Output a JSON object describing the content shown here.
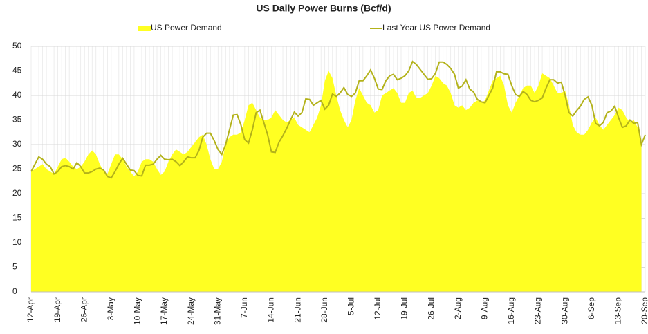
{
  "chart_data": {
    "type": "area-line",
    "title": "US Daily Power Burns (Bcf/d)",
    "legend": "top",
    "grid": true,
    "categories": [
      "12-Apr",
      null,
      null,
      null,
      null,
      null,
      null,
      "19-Apr",
      null,
      null,
      null,
      null,
      null,
      null,
      "26-Apr",
      null,
      null,
      null,
      null,
      null,
      null,
      "3-May",
      null,
      null,
      null,
      null,
      null,
      null,
      "10-May",
      null,
      null,
      null,
      null,
      null,
      null,
      "17-May",
      null,
      null,
      null,
      null,
      null,
      null,
      "24-May",
      null,
      null,
      null,
      null,
      null,
      null,
      "31-May",
      null,
      null,
      null,
      null,
      null,
      null,
      "7-Jun",
      null,
      null,
      null,
      null,
      null,
      null,
      "14-Jun",
      null,
      null,
      null,
      null,
      null,
      null,
      "21-Jun",
      null,
      null,
      null,
      null,
      null,
      null,
      "28-Jun",
      null,
      null,
      null,
      null,
      null,
      null,
      "5-Jul",
      null,
      null,
      null,
      null,
      null,
      null,
      "12-Jul",
      null,
      null,
      null,
      null,
      null,
      null,
      "19-Jul",
      null,
      null,
      null,
      null,
      null,
      null,
      "26-Jul",
      null,
      null,
      null,
      null,
      null,
      null,
      "2-Aug",
      null,
      null,
      null,
      null,
      null,
      null,
      "9-Aug",
      null,
      null,
      null,
      null,
      null,
      null,
      "16-Aug",
      null,
      null,
      null,
      null,
      null,
      null,
      "23-Aug",
      null,
      null,
      null,
      null,
      null,
      null,
      "30-Aug",
      null,
      null,
      null,
      null,
      null,
      null,
      "6-Sep",
      null,
      null,
      null,
      null,
      null,
      null,
      "13-Sep",
      null,
      null,
      null,
      null,
      null,
      null,
      "20-Sep"
    ],
    "series": [
      {
        "name": "US Power Demand",
        "color": "#ffff22",
        "style": "area",
        "values": [
          24.5,
          25,
          25.5,
          26,
          25,
          24.5,
          24,
          25.5,
          27,
          27.3,
          26.5,
          25.5,
          25,
          25.5,
          26.5,
          28,
          28.8,
          28,
          26,
          24.5,
          24,
          26,
          28,
          28,
          27,
          25.5,
          24.5,
          23.5,
          24.5,
          26.5,
          27,
          27,
          26.5,
          25,
          23.8,
          24.5,
          26.5,
          28,
          29,
          28.5,
          28,
          28.5,
          29.5,
          30.5,
          31.5,
          32,
          30,
          27,
          25,
          25,
          26.5,
          30,
          31.5,
          32,
          32,
          32.5,
          35,
          38,
          38.5,
          37,
          35.5,
          35,
          35,
          35.5,
          37,
          36,
          35,
          34.5,
          35,
          35.5,
          34,
          33.5,
          33,
          32.5,
          34,
          35.5,
          38,
          43,
          45,
          43.5,
          40,
          37,
          35,
          33.5,
          35,
          39,
          41.5,
          40,
          38.5,
          38,
          36.5,
          37,
          40,
          40.5,
          41,
          41.5,
          40.5,
          38.5,
          38.5,
          40.5,
          41,
          39.5,
          39.5,
          40,
          40.5,
          42,
          44,
          43.5,
          42.5,
          42,
          40.5,
          38,
          37.5,
          38,
          37,
          37.5,
          38.5,
          39,
          38.5,
          39,
          41,
          43,
          43.5,
          44,
          42,
          38,
          36.5,
          38.5,
          40,
          41.5,
          42,
          42,
          40.5,
          42,
          44.5,
          44,
          43.5,
          42,
          40.5,
          40.5,
          41,
          38,
          34,
          32.5,
          32,
          32,
          33,
          34.5,
          35.5,
          34,
          33,
          34,
          35,
          36,
          37.5,
          37,
          35.5,
          34.5,
          35,
          33.5,
          31,
          null
        ]
      },
      {
        "name": "Last Year US Power Demand",
        "color": "#b3b21a",
        "style": "line",
        "values": [
          24.5,
          26,
          27.5,
          27,
          26,
          25.5,
          24,
          24.5,
          25.5,
          25.7,
          25.5,
          25,
          26.3,
          25.5,
          24.2,
          24.2,
          24.5,
          25,
          25.2,
          24.8,
          23.5,
          23.2,
          24.5,
          26,
          27.2,
          26,
          24.8,
          24.7,
          23.7,
          23.6,
          25.8,
          25.8,
          26,
          27,
          27.8,
          27,
          26.9,
          27,
          26.5,
          25.7,
          26.5,
          27.5,
          27.3,
          27.3,
          28.8,
          31.5,
          32.3,
          32.3,
          30.8,
          29,
          28,
          30,
          33,
          36,
          36.1,
          34,
          31,
          30.3,
          33,
          36.5,
          37,
          34.5,
          32,
          28.5,
          28.4,
          30.5,
          31.8,
          33.3,
          35,
          36.6,
          35.8,
          36.5,
          39.3,
          39.2,
          38,
          38.5,
          39,
          37.2,
          38,
          40.3,
          39.8,
          40.5,
          41.6,
          40.2,
          39.8,
          40.5,
          43,
          43,
          44,
          45.2,
          43.5,
          41.3,
          41.2,
          43,
          44,
          44.3,
          43.2,
          43.5,
          44,
          45,
          46.9,
          46.3,
          45.3,
          44.3,
          43.3,
          43.4,
          44.5,
          46.8,
          46.8,
          46.3,
          45.5,
          44.3,
          41.5,
          41.9,
          43.2,
          41.3,
          40.7,
          39.2,
          38.7,
          38.5,
          40,
          41.5,
          44.8,
          44.8,
          44.4,
          44.3,
          42,
          40.2,
          39.8,
          40.8,
          40.2,
          39,
          38.7,
          39,
          39.5,
          41.5,
          43.2,
          43.2,
          42.5,
          42.7,
          40,
          36.5,
          35.8,
          36.9,
          37.8,
          39.2,
          39.7,
          38,
          34.3,
          33.8,
          34.5,
          36.5,
          36.8,
          37.8,
          35.5,
          33.5,
          33.8,
          35,
          34.3,
          34.5,
          30,
          32
        ]
      }
    ],
    "ylim": [
      0,
      50
    ],
    "yticks": [
      0,
      5,
      10,
      15,
      20,
      25,
      30,
      35,
      40,
      45,
      50
    ]
  }
}
